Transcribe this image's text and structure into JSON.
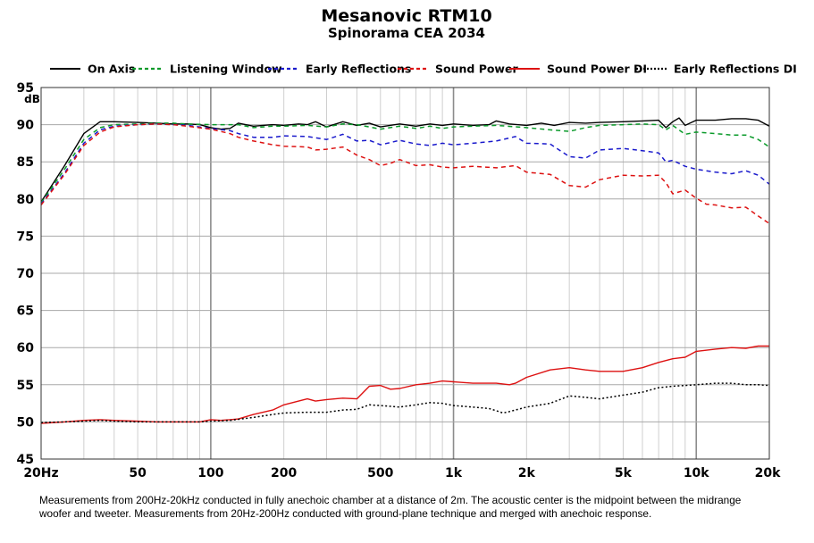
{
  "chart_data": {
    "type": "line",
    "title": "Mesanovic RTM10",
    "subtitle": "Spinorama CEA 2034",
    "xlabel": "",
    "ylabel": "dB",
    "xscale": "log",
    "xlim": [
      20,
      20000
    ],
    "ylim": [
      45,
      95
    ],
    "grid": true,
    "legend_position": "top",
    "x_ticks": [
      {
        "value": 20,
        "label": "20Hz"
      },
      {
        "value": 50,
        "label": "50"
      },
      {
        "value": 100,
        "label": "100"
      },
      {
        "value": 200,
        "label": "200"
      },
      {
        "value": 500,
        "label": "500"
      },
      {
        "value": 1000,
        "label": "1k"
      },
      {
        "value": 2000,
        "label": "2k"
      },
      {
        "value": 5000,
        "label": "5k"
      },
      {
        "value": 10000,
        "label": "10k"
      },
      {
        "value": 20000,
        "label": "20k"
      }
    ],
    "y_ticks": [
      45,
      50,
      55,
      60,
      65,
      70,
      75,
      80,
      85,
      90,
      95
    ],
    "series": [
      {
        "name": "On Axis",
        "color": "#000000",
        "style": "solid",
        "points": [
          [
            20,
            79.6
          ],
          [
            25,
            84.5
          ],
          [
            30,
            88.8
          ],
          [
            35,
            90.4
          ],
          [
            40,
            90.4
          ],
          [
            50,
            90.3
          ],
          [
            60,
            90.2
          ],
          [
            70,
            90.1
          ],
          [
            80,
            90.1
          ],
          [
            90,
            90.0
          ],
          [
            100,
            89.6
          ],
          [
            110,
            89.4
          ],
          [
            120,
            89.5
          ],
          [
            130,
            90.2
          ],
          [
            150,
            89.8
          ],
          [
            180,
            90.0
          ],
          [
            200,
            89.9
          ],
          [
            230,
            90.1
          ],
          [
            250,
            90.0
          ],
          [
            270,
            90.4
          ],
          [
            300,
            89.7
          ],
          [
            350,
            90.4
          ],
          [
            400,
            89.9
          ],
          [
            450,
            90.2
          ],
          [
            500,
            89.7
          ],
          [
            600,
            90.1
          ],
          [
            700,
            89.8
          ],
          [
            800,
            90.1
          ],
          [
            900,
            89.9
          ],
          [
            1000,
            90.1
          ],
          [
            1200,
            89.9
          ],
          [
            1400,
            90.0
          ],
          [
            1500,
            90.5
          ],
          [
            1700,
            90.1
          ],
          [
            2000,
            89.9
          ],
          [
            2300,
            90.2
          ],
          [
            2600,
            89.9
          ],
          [
            3000,
            90.3
          ],
          [
            3500,
            90.2
          ],
          [
            4000,
            90.3
          ],
          [
            5000,
            90.4
          ],
          [
            6000,
            90.5
          ],
          [
            7000,
            90.6
          ],
          [
            7500,
            89.6
          ],
          [
            8000,
            90.4
          ],
          [
            8500,
            90.9
          ],
          [
            9000,
            89.9
          ],
          [
            10000,
            90.6
          ],
          [
            12000,
            90.6
          ],
          [
            14000,
            90.8
          ],
          [
            16000,
            90.8
          ],
          [
            18000,
            90.6
          ],
          [
            20000,
            89.8
          ]
        ]
      },
      {
        "name": "Listening Window",
        "color": "#0a9a2a",
        "style": "dashed",
        "points": [
          [
            20,
            79.5
          ],
          [
            25,
            84.0
          ],
          [
            30,
            88.0
          ],
          [
            35,
            89.6
          ],
          [
            40,
            90.0
          ],
          [
            50,
            90.1
          ],
          [
            60,
            90.2
          ],
          [
            70,
            90.2
          ],
          [
            80,
            90.1
          ],
          [
            100,
            90.0
          ],
          [
            130,
            90.0
          ],
          [
            150,
            89.6
          ],
          [
            180,
            89.8
          ],
          [
            200,
            89.8
          ],
          [
            250,
            89.9
          ],
          [
            300,
            89.7
          ],
          [
            350,
            90.1
          ],
          [
            400,
            90.0
          ],
          [
            450,
            89.7
          ],
          [
            500,
            89.4
          ],
          [
            600,
            89.8
          ],
          [
            700,
            89.5
          ],
          [
            800,
            89.8
          ],
          [
            900,
            89.5
          ],
          [
            1000,
            89.7
          ],
          [
            1200,
            89.8
          ],
          [
            1500,
            89.9
          ],
          [
            2000,
            89.6
          ],
          [
            2500,
            89.3
          ],
          [
            3000,
            89.1
          ],
          [
            3500,
            89.6
          ],
          [
            4000,
            89.9
          ],
          [
            5000,
            90.0
          ],
          [
            6000,
            90.1
          ],
          [
            7000,
            90.0
          ],
          [
            7500,
            89.3
          ],
          [
            8000,
            89.9
          ],
          [
            9000,
            88.7
          ],
          [
            10000,
            89.0
          ],
          [
            12000,
            88.8
          ],
          [
            14000,
            88.6
          ],
          [
            16000,
            88.6
          ],
          [
            18000,
            88.0
          ],
          [
            20000,
            87.0
          ]
        ]
      },
      {
        "name": "Early Reflections",
        "color": "#1a1acc",
        "style": "dashed",
        "points": [
          [
            20,
            79.3
          ],
          [
            25,
            83.5
          ],
          [
            30,
            87.5
          ],
          [
            35,
            89.3
          ],
          [
            40,
            89.8
          ],
          [
            50,
            90.0
          ],
          [
            60,
            90.1
          ],
          [
            70,
            90.0
          ],
          [
            80,
            89.9
          ],
          [
            100,
            89.5
          ],
          [
            120,
            89.2
          ],
          [
            130,
            88.8
          ],
          [
            150,
            88.3
          ],
          [
            180,
            88.3
          ],
          [
            200,
            88.5
          ],
          [
            250,
            88.4
          ],
          [
            300,
            88.0
          ],
          [
            350,
            88.7
          ],
          [
            400,
            87.8
          ],
          [
            450,
            87.9
          ],
          [
            500,
            87.3
          ],
          [
            550,
            87.6
          ],
          [
            600,
            87.9
          ],
          [
            700,
            87.4
          ],
          [
            800,
            87.2
          ],
          [
            900,
            87.5
          ],
          [
            1000,
            87.3
          ],
          [
            1200,
            87.5
          ],
          [
            1500,
            87.8
          ],
          [
            1800,
            88.4
          ],
          [
            2000,
            87.5
          ],
          [
            2500,
            87.4
          ],
          [
            3000,
            85.7
          ],
          [
            3500,
            85.5
          ],
          [
            4000,
            86.6
          ],
          [
            5000,
            86.8
          ],
          [
            6000,
            86.5
          ],
          [
            7000,
            86.2
          ],
          [
            7500,
            85.0
          ],
          [
            8000,
            85.2
          ],
          [
            9000,
            84.4
          ],
          [
            10000,
            84.0
          ],
          [
            12000,
            83.6
          ],
          [
            14000,
            83.4
          ],
          [
            16000,
            83.8
          ],
          [
            18000,
            83.2
          ],
          [
            20000,
            82.0
          ]
        ]
      },
      {
        "name": "Sound Power",
        "color": "#dd1111",
        "style": "dashed",
        "points": [
          [
            20,
            79.2
          ],
          [
            25,
            83.3
          ],
          [
            30,
            87.2
          ],
          [
            35,
            89.0
          ],
          [
            40,
            89.7
          ],
          [
            50,
            90.0
          ],
          [
            60,
            90.1
          ],
          [
            70,
            90.0
          ],
          [
            80,
            89.8
          ],
          [
            100,
            89.4
          ],
          [
            120,
            88.8
          ],
          [
            130,
            88.3
          ],
          [
            150,
            87.8
          ],
          [
            180,
            87.3
          ],
          [
            200,
            87.1
          ],
          [
            250,
            87.0
          ],
          [
            270,
            86.6
          ],
          [
            300,
            86.7
          ],
          [
            350,
            87.0
          ],
          [
            400,
            85.9
          ],
          [
            450,
            85.3
          ],
          [
            500,
            84.5
          ],
          [
            550,
            84.8
          ],
          [
            600,
            85.3
          ],
          [
            700,
            84.5
          ],
          [
            800,
            84.6
          ],
          [
            900,
            84.3
          ],
          [
            1000,
            84.2
          ],
          [
            1200,
            84.4
          ],
          [
            1500,
            84.2
          ],
          [
            1800,
            84.5
          ],
          [
            2000,
            83.6
          ],
          [
            2500,
            83.3
          ],
          [
            3000,
            81.8
          ],
          [
            3500,
            81.6
          ],
          [
            4000,
            82.6
          ],
          [
            5000,
            83.2
          ],
          [
            6000,
            83.1
          ],
          [
            7000,
            83.2
          ],
          [
            7500,
            82.2
          ],
          [
            8000,
            80.7
          ],
          [
            9000,
            81.2
          ],
          [
            10000,
            80.1
          ],
          [
            11000,
            79.3
          ],
          [
            12000,
            79.2
          ],
          [
            14000,
            78.8
          ],
          [
            16000,
            78.9
          ],
          [
            18000,
            77.7
          ],
          [
            20000,
            76.7
          ]
        ]
      },
      {
        "name": "Sound Power DI",
        "color": "#dd1111",
        "style": "solid",
        "points": [
          [
            20,
            49.8
          ],
          [
            25,
            50.0
          ],
          [
            30,
            50.2
          ],
          [
            35,
            50.3
          ],
          [
            40,
            50.2
          ],
          [
            50,
            50.1
          ],
          [
            60,
            50.0
          ],
          [
            70,
            50.0
          ],
          [
            80,
            50.0
          ],
          [
            90,
            50.0
          ],
          [
            100,
            50.3
          ],
          [
            110,
            50.2
          ],
          [
            120,
            50.3
          ],
          [
            130,
            50.4
          ],
          [
            150,
            51.0
          ],
          [
            180,
            51.6
          ],
          [
            200,
            52.3
          ],
          [
            230,
            52.8
          ],
          [
            250,
            53.1
          ],
          [
            270,
            52.8
          ],
          [
            300,
            53.0
          ],
          [
            350,
            53.2
          ],
          [
            400,
            53.1
          ],
          [
            450,
            54.8
          ],
          [
            500,
            54.9
          ],
          [
            550,
            54.4
          ],
          [
            600,
            54.5
          ],
          [
            700,
            55.0
          ],
          [
            800,
            55.2
          ],
          [
            900,
            55.5
          ],
          [
            1000,
            55.4
          ],
          [
            1200,
            55.2
          ],
          [
            1500,
            55.2
          ],
          [
            1700,
            55.0
          ],
          [
            1800,
            55.2
          ],
          [
            2000,
            56.0
          ],
          [
            2500,
            57.0
          ],
          [
            3000,
            57.3
          ],
          [
            3500,
            57.0
          ],
          [
            4000,
            56.8
          ],
          [
            5000,
            56.8
          ],
          [
            6000,
            57.3
          ],
          [
            7000,
            58.0
          ],
          [
            8000,
            58.5
          ],
          [
            9000,
            58.7
          ],
          [
            10000,
            59.5
          ],
          [
            12000,
            59.8
          ],
          [
            14000,
            60.0
          ],
          [
            16000,
            59.9
          ],
          [
            18000,
            60.2
          ],
          [
            20000,
            60.2
          ]
        ]
      },
      {
        "name": "Early Reflections DI",
        "color": "#000000",
        "style": "dotted",
        "points": [
          [
            20,
            49.9
          ],
          [
            25,
            50.0
          ],
          [
            30,
            50.1
          ],
          [
            35,
            50.2
          ],
          [
            40,
            50.1
          ],
          [
            50,
            50.0
          ],
          [
            60,
            50.0
          ],
          [
            70,
            50.0
          ],
          [
            80,
            50.0
          ],
          [
            90,
            50.0
          ],
          [
            100,
            50.1
          ],
          [
            120,
            50.2
          ],
          [
            150,
            50.6
          ],
          [
            180,
            51.0
          ],
          [
            200,
            51.2
          ],
          [
            250,
            51.3
          ],
          [
            300,
            51.3
          ],
          [
            350,
            51.6
          ],
          [
            400,
            51.7
          ],
          [
            450,
            52.3
          ],
          [
            500,
            52.2
          ],
          [
            600,
            52.0
          ],
          [
            700,
            52.3
          ],
          [
            800,
            52.6
          ],
          [
            900,
            52.5
          ],
          [
            1000,
            52.2
          ],
          [
            1200,
            52.0
          ],
          [
            1400,
            51.8
          ],
          [
            1500,
            51.5
          ],
          [
            1600,
            51.2
          ],
          [
            1700,
            51.4
          ],
          [
            1800,
            51.6
          ],
          [
            2000,
            52.0
          ],
          [
            2500,
            52.5
          ],
          [
            3000,
            53.5
          ],
          [
            3500,
            53.3
          ],
          [
            4000,
            53.1
          ],
          [
            5000,
            53.6
          ],
          [
            6000,
            54.0
          ],
          [
            7000,
            54.6
          ],
          [
            8000,
            54.8
          ],
          [
            9000,
            54.9
          ],
          [
            10000,
            55.0
          ],
          [
            12000,
            55.2
          ],
          [
            14000,
            55.2
          ],
          [
            16000,
            55.0
          ],
          [
            18000,
            55.0
          ],
          [
            20000,
            54.9
          ]
        ]
      }
    ]
  },
  "footnote": {
    "line1": "Measurements from 200Hz-20kHz conducted in fully anechoic chamber at a distance of 2m. The acoustic center is the midpoint between the midrange",
    "line2": "woofer and tweeter. Measurements from 20Hz-200Hz conducted with ground-plane technique and merged with anechoic response."
  }
}
